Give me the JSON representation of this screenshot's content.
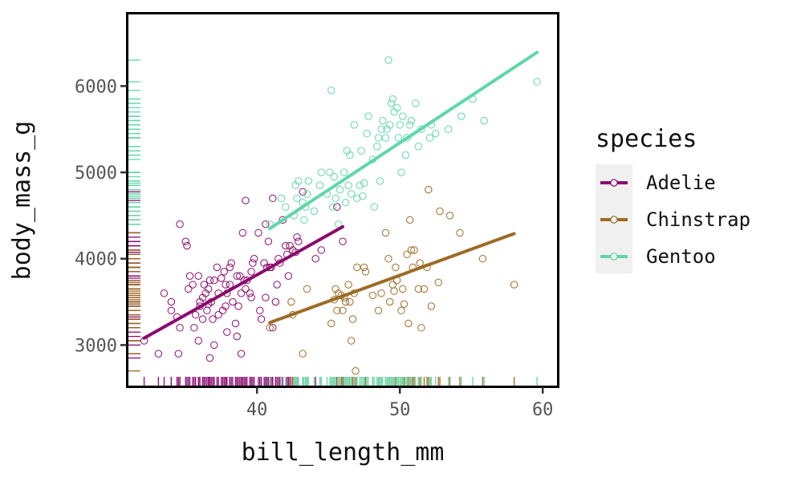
{
  "chart_data": {
    "type": "scatter",
    "xlabel": "bill_length_mm",
    "ylabel": "body_mass_g",
    "xlim": [
      31.0,
      61.0
    ],
    "ylim": [
      2530,
      6830
    ],
    "xticks": [
      40,
      50,
      60
    ],
    "xtick_labels": [
      "40",
      "50",
      "60"
    ],
    "yticks": [
      3000,
      4000,
      5000,
      6000
    ],
    "ytick_labels": [
      "3000",
      "4000",
      "5000",
      "6000"
    ],
    "grid": false,
    "rug": true,
    "legend": {
      "title": "species",
      "placement": "right"
    },
    "series": [
      {
        "name": "Adelie",
        "color": "#8B0A6E",
        "fit_line": {
          "x": [
            32.1,
            46.0
          ],
          "y": [
            3080,
            4370
          ]
        },
        "points": [
          [
            32.1,
            3050
          ],
          [
            33.1,
            2900
          ],
          [
            33.5,
            3600
          ],
          [
            34.0,
            3400
          ],
          [
            34.0,
            3500
          ],
          [
            34.4,
            3325
          ],
          [
            34.5,
            2900
          ],
          [
            34.6,
            4400
          ],
          [
            34.6,
            3200
          ],
          [
            35.0,
            4200
          ],
          [
            35.1,
            4150
          ],
          [
            35.2,
            3650
          ],
          [
            35.3,
            3800
          ],
          [
            35.5,
            3700
          ],
          [
            35.6,
            3200
          ],
          [
            35.7,
            3350
          ],
          [
            35.9,
            3800
          ],
          [
            35.9,
            3050
          ],
          [
            36.0,
            3450
          ],
          [
            36.0,
            3500
          ],
          [
            36.2,
            3550
          ],
          [
            36.2,
            3300
          ],
          [
            36.3,
            3700
          ],
          [
            36.4,
            3600
          ],
          [
            36.5,
            3400
          ],
          [
            36.6,
            3475
          ],
          [
            36.6,
            3650
          ],
          [
            36.7,
            3750
          ],
          [
            36.7,
            2850
          ],
          [
            36.8,
            3500
          ],
          [
            36.9,
            3300
          ],
          [
            37.0,
            3750
          ],
          [
            37.0,
            3000
          ],
          [
            37.2,
            3900
          ],
          [
            37.3,
            3350
          ],
          [
            37.3,
            3600
          ],
          [
            37.5,
            3775
          ],
          [
            37.6,
            3400
          ],
          [
            37.7,
            3850
          ],
          [
            37.8,
            3450
          ],
          [
            37.8,
            3700
          ],
          [
            37.9,
            3150
          ],
          [
            37.9,
            3600
          ],
          [
            38.1,
            3900
          ],
          [
            38.1,
            3700
          ],
          [
            38.2,
            3950
          ],
          [
            38.3,
            3500
          ],
          [
            38.5,
            3250
          ],
          [
            38.6,
            3800
          ],
          [
            38.6,
            3100
          ],
          [
            38.7,
            3450
          ],
          [
            38.8,
            3800
          ],
          [
            38.9,
            3600
          ],
          [
            38.9,
            2900
          ],
          [
            39.0,
            4300
          ],
          [
            39.1,
            3750
          ],
          [
            39.2,
            3650
          ],
          [
            39.2,
            4675
          ],
          [
            39.3,
            3750
          ],
          [
            39.5,
            3600
          ],
          [
            39.6,
            3850
          ],
          [
            39.6,
            3550
          ],
          [
            39.7,
            3950
          ],
          [
            39.8,
            4000
          ],
          [
            40.1,
            4300
          ],
          [
            40.2,
            3400
          ],
          [
            40.3,
            3300
          ],
          [
            40.5,
            3950
          ],
          [
            40.6,
            4400
          ],
          [
            40.6,
            3550
          ],
          [
            40.7,
            3900
          ],
          [
            40.8,
            4200
          ],
          [
            40.9,
            3900
          ],
          [
            41.0,
            3900
          ],
          [
            41.1,
            4700
          ],
          [
            41.1,
            3200
          ],
          [
            41.3,
            3500
          ],
          [
            41.4,
            3700
          ],
          [
            41.5,
            4000
          ],
          [
            41.6,
            3950
          ],
          [
            41.8,
            4450
          ],
          [
            42.0,
            4150
          ],
          [
            42.1,
            4050
          ],
          [
            42.2,
            3800
          ],
          [
            42.3,
            4150
          ],
          [
            42.5,
            4100
          ],
          [
            42.7,
            4075
          ],
          [
            42.8,
            4250
          ],
          [
            42.9,
            4200
          ],
          [
            43.2,
            4775
          ],
          [
            44.1,
            4000
          ],
          [
            44.5,
            4100
          ],
          [
            45.6,
            4600
          ],
          [
            46.0,
            4200
          ]
        ]
      },
      {
        "name": "Chinstrap",
        "color": "#9C6B24",
        "fit_line": {
          "x": [
            40.9,
            58.0
          ],
          "y": [
            3260,
            4290
          ]
        },
        "points": [
          [
            40.9,
            3200
          ],
          [
            42.4,
            3500
          ],
          [
            42.5,
            3350
          ],
          [
            43.2,
            2900
          ],
          [
            43.5,
            3650
          ],
          [
            45.2,
            3250
          ],
          [
            45.4,
            3525
          ],
          [
            45.5,
            3650
          ],
          [
            45.6,
            3400
          ],
          [
            45.7,
            3600
          ],
          [
            45.9,
            3575
          ],
          [
            46.0,
            3400
          ],
          [
            46.1,
            3550
          ],
          [
            46.2,
            3500
          ],
          [
            46.4,
            3700
          ],
          [
            46.5,
            3500
          ],
          [
            46.6,
            3050
          ],
          [
            46.7,
            3300
          ],
          [
            46.8,
            3600
          ],
          [
            46.9,
            2700
          ],
          [
            47.0,
            3900
          ],
          [
            47.5,
            3900
          ],
          [
            47.6,
            3850
          ],
          [
            48.1,
            3575
          ],
          [
            48.5,
            3400
          ],
          [
            48.7,
            3600
          ],
          [
            49.0,
            4300
          ],
          [
            49.2,
            4000
          ],
          [
            49.3,
            3500
          ],
          [
            49.5,
            3700
          ],
          [
            49.6,
            3625
          ],
          [
            49.7,
            3900
          ],
          [
            49.8,
            3750
          ],
          [
            50.1,
            3400
          ],
          [
            50.2,
            3650
          ],
          [
            50.3,
            3475
          ],
          [
            50.5,
            4050
          ],
          [
            50.6,
            3250
          ],
          [
            50.7,
            4450
          ],
          [
            50.8,
            4100
          ],
          [
            50.9,
            3900
          ],
          [
            51.0,
            4100
          ],
          [
            51.3,
            3650
          ],
          [
            51.4,
            3950
          ],
          [
            51.5,
            3200
          ],
          [
            51.7,
            3650
          ],
          [
            51.9,
            3900
          ],
          [
            52.0,
            4800
          ],
          [
            52.2,
            3450
          ],
          [
            52.7,
            3725
          ],
          [
            52.8,
            4550
          ],
          [
            53.5,
            4500
          ],
          [
            54.2,
            4300
          ],
          [
            55.8,
            4000
          ],
          [
            58.0,
            3700
          ]
        ]
      },
      {
        "name": "Gentoo",
        "color": "#5FD7A9",
        "fit_line": {
          "x": [
            40.9,
            59.6
          ],
          "y": [
            4350,
            6390
          ]
        },
        "points": [
          [
            40.9,
            4400
          ],
          [
            41.7,
            4700
          ],
          [
            42.0,
            4600
          ],
          [
            42.6,
            4500
          ],
          [
            42.7,
            4850
          ],
          [
            42.8,
            4700
          ],
          [
            42.9,
            4900
          ],
          [
            43.2,
            4650
          ],
          [
            43.3,
            4450
          ],
          [
            43.4,
            4600
          ],
          [
            43.5,
            4750
          ],
          [
            43.6,
            4900
          ],
          [
            44.0,
            4550
          ],
          [
            44.4,
            4850
          ],
          [
            44.5,
            5000
          ],
          [
            44.9,
            4750
          ],
          [
            45.1,
            5000
          ],
          [
            45.2,
            5950
          ],
          [
            45.3,
            4600
          ],
          [
            45.4,
            4950
          ],
          [
            45.5,
            4700
          ],
          [
            45.7,
            4400
          ],
          [
            45.8,
            4800
          ],
          [
            46.1,
            5000
          ],
          [
            46.2,
            4650
          ],
          [
            46.3,
            5250
          ],
          [
            46.4,
            4850
          ],
          [
            46.5,
            5200
          ],
          [
            46.6,
            4750
          ],
          [
            46.8,
            5550
          ],
          [
            47.0,
            4700
          ],
          [
            47.2,
            4850
          ],
          [
            47.3,
            5250
          ],
          [
            47.4,
            4725
          ],
          [
            47.5,
            4875
          ],
          [
            47.7,
            5450
          ],
          [
            47.8,
            5650
          ],
          [
            48.1,
            5150
          ],
          [
            48.2,
            4600
          ],
          [
            48.4,
            5300
          ],
          [
            48.5,
            5400
          ],
          [
            48.6,
            4900
          ],
          [
            48.7,
            5500
          ],
          [
            48.8,
            5600
          ],
          [
            49.0,
            5400
          ],
          [
            49.1,
            5500
          ],
          [
            49.2,
            6300
          ],
          [
            49.3,
            5550
          ],
          [
            49.4,
            5800
          ],
          [
            49.5,
            5850
          ],
          [
            49.6,
            5700
          ],
          [
            49.8,
            5750
          ],
          [
            49.9,
            5400
          ],
          [
            50.0,
            5550
          ],
          [
            50.1,
            5000
          ],
          [
            50.2,
            5650
          ],
          [
            50.4,
            5200
          ],
          [
            50.5,
            5400
          ],
          [
            50.7,
            5550
          ],
          [
            50.8,
            5600
          ],
          [
            51.1,
            5800
          ],
          [
            51.3,
            5300
          ],
          [
            51.5,
            5500
          ],
          [
            52.1,
            5400
          ],
          [
            52.2,
            5550
          ],
          [
            52.5,
            5450
          ],
          [
            53.4,
            5500
          ],
          [
            54.3,
            5650
          ],
          [
            55.1,
            5850
          ],
          [
            55.9,
            5600
          ],
          [
            59.6,
            6050
          ]
        ]
      }
    ]
  }
}
